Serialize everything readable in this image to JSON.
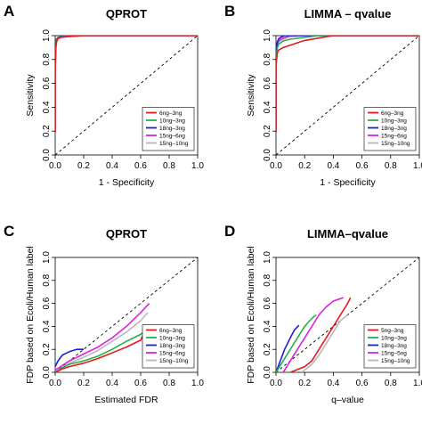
{
  "chart_data": [
    {
      "letter": "A",
      "title": "QPROT",
      "type": "line",
      "xlabel": "1 - Specificity",
      "ylabel": "Sensitivity",
      "xlim": [
        0,
        1
      ],
      "ylim": [
        0,
        1
      ],
      "xticks": [
        "0.0",
        "0.2",
        "0.4",
        "0.6",
        "0.8",
        "1.0"
      ],
      "yticks": [
        "0.0",
        "0.2",
        "0.4",
        "0.6",
        "0.8",
        "1.0"
      ],
      "diagonal": true,
      "legend_position": "bottom-right",
      "series": [
        {
          "name": "6ng–3ng",
          "color": "#e8191d",
          "x": [
            0,
            0,
            0.005,
            0.01,
            0.02,
            0.04,
            0.06,
            0.1,
            0.2,
            1.0
          ],
          "y": [
            0.19,
            0.7,
            0.9,
            0.95,
            0.975,
            0.985,
            0.99,
            0.995,
            1,
            1
          ]
        },
        {
          "name": "10ng–3ng",
          "color": "#22b14c",
          "x": [
            0,
            0,
            0.005,
            0.01,
            0.02,
            0.04,
            0.08,
            0.2,
            1.0
          ],
          "y": [
            0.19,
            0.75,
            0.92,
            0.96,
            0.98,
            0.99,
            0.995,
            1,
            1
          ]
        },
        {
          "name": "18ng–3ng",
          "color": "#1f1fd0",
          "x": [
            0,
            0,
            0.005,
            0.01,
            0.02,
            0.05,
            0.1,
            1.0
          ],
          "y": [
            0.19,
            0.8,
            0.94,
            0.97,
            0.985,
            0.995,
            1,
            1
          ]
        },
        {
          "name": "15ng–6ng",
          "color": "#e020e0",
          "x": [
            0,
            0,
            0.005,
            0.01,
            0.02,
            0.04,
            0.08,
            0.2,
            1.0
          ],
          "y": [
            0.19,
            0.72,
            0.91,
            0.955,
            0.975,
            0.985,
            0.99,
            1,
            1
          ]
        },
        {
          "name": "15ng–10ng",
          "color": "#b9b9b9",
          "x": [
            0,
            0,
            0.005,
            0.01,
            0.02,
            0.05,
            0.1,
            1.0
          ],
          "y": [
            0.19,
            0.78,
            0.93,
            0.965,
            0.98,
            0.99,
            1,
            1
          ]
        }
      ]
    },
    {
      "letter": "B",
      "title": "LIMMA – qvalue",
      "type": "line",
      "xlabel": "1 - Specificity",
      "ylabel": "Sensitivity",
      "xlim": [
        0,
        1
      ],
      "ylim": [
        0,
        1
      ],
      "xticks": [
        "0.0",
        "0.2",
        "0.4",
        "0.6",
        "0.8",
        "1.0"
      ],
      "yticks": [
        "0.0",
        "0.2",
        "0.4",
        "0.6",
        "0.8",
        "1.0"
      ],
      "diagonal": true,
      "legend_position": "bottom-right",
      "series": [
        {
          "name": "6ng–3ng",
          "color": "#e8191d",
          "x": [
            0,
            0,
            0.01,
            0.02,
            0.05,
            0.1,
            0.15,
            0.2,
            0.3,
            0.4,
            1.0
          ],
          "y": [
            0.19,
            0.75,
            0.86,
            0.88,
            0.9,
            0.92,
            0.94,
            0.96,
            0.98,
            1,
            1
          ]
        },
        {
          "name": "10ng–3ng",
          "color": "#22b14c",
          "x": [
            0,
            0,
            0.01,
            0.02,
            0.05,
            0.1,
            0.2,
            0.3,
            1.0
          ],
          "y": [
            0.19,
            0.8,
            0.9,
            0.93,
            0.955,
            0.97,
            0.985,
            1,
            1
          ]
        },
        {
          "name": "18ng–3ng",
          "color": "#1f1fd0",
          "x": [
            0,
            0,
            0.01,
            0.02,
            0.04,
            0.06,
            1.0
          ],
          "y": [
            0.19,
            0.85,
            0.95,
            0.975,
            0.99,
            1,
            1
          ]
        },
        {
          "name": "15ng–6ng",
          "color": "#e020e0",
          "x": [
            0,
            0,
            0.01,
            0.02,
            0.05,
            0.1,
            1.0
          ],
          "y": [
            0.19,
            0.8,
            0.93,
            0.96,
            0.98,
            1,
            1
          ]
        },
        {
          "name": "15ng–10ng",
          "color": "#b9b9b9",
          "x": [
            0,
            0,
            0.01,
            0.02,
            0.05,
            0.1,
            0.2,
            1.0
          ],
          "y": [
            0.19,
            0.8,
            0.92,
            0.95,
            0.97,
            0.99,
            1,
            1
          ]
        }
      ]
    },
    {
      "letter": "C",
      "title": "QPROT",
      "type": "line",
      "xlabel": "Estimated FDR",
      "ylabel": "FDP based on Ecoli/Human label",
      "xlim": [
        0,
        1
      ],
      "ylim": [
        0,
        1
      ],
      "xticks": [
        "0.0",
        "0.2",
        "0.4",
        "0.6",
        "0.8",
        "1.0"
      ],
      "yticks": [
        "0.0",
        "0.2",
        "0.4",
        "0.6",
        "0.8",
        "1.0"
      ],
      "diagonal": true,
      "legend_position": "bottom-right",
      "series": [
        {
          "name": "6ng–3ng",
          "color": "#e8191d",
          "x": [
            0,
            0.05,
            0.1,
            0.2,
            0.3,
            0.4,
            0.5,
            0.6,
            0.62
          ],
          "y": [
            0,
            0.03,
            0.05,
            0.08,
            0.12,
            0.17,
            0.22,
            0.28,
            0.33
          ]
        },
        {
          "name": "10ng–3ng",
          "color": "#22b14c",
          "x": [
            0,
            0.05,
            0.1,
            0.2,
            0.3,
            0.4,
            0.5,
            0.6,
            0.63
          ],
          "y": [
            0,
            0.04,
            0.07,
            0.1,
            0.14,
            0.2,
            0.27,
            0.33,
            0.36
          ]
        },
        {
          "name": "18ng–3ng",
          "color": "#1f1fd0",
          "x": [
            0,
            0.02,
            0.05,
            0.1,
            0.15,
            0.2
          ],
          "y": [
            0.05,
            0.1,
            0.15,
            0.18,
            0.2,
            0.2
          ]
        },
        {
          "name": "15ng–6ng",
          "color": "#e020e0",
          "x": [
            0,
            0.05,
            0.1,
            0.2,
            0.3,
            0.4,
            0.5,
            0.6,
            0.66
          ],
          "y": [
            0.02,
            0.06,
            0.1,
            0.16,
            0.22,
            0.3,
            0.4,
            0.52,
            0.6
          ]
        },
        {
          "name": "15ng–10ng",
          "color": "#b9b9b9",
          "x": [
            0,
            0.05,
            0.1,
            0.2,
            0.3,
            0.4,
            0.5,
            0.6,
            0.65
          ],
          "y": [
            0,
            0.04,
            0.08,
            0.13,
            0.19,
            0.27,
            0.35,
            0.45,
            0.52
          ]
        }
      ]
    },
    {
      "letter": "D",
      "title": "LIMMA–qvalue",
      "type": "line",
      "xlabel": "q–value",
      "ylabel": "FDP based on Ecoli/Human label",
      "xlim": [
        0,
        1
      ],
      "ylim": [
        0,
        1
      ],
      "xticks": [
        "0.0",
        "0.2",
        "0.4",
        "0.6",
        "0.8",
        "1.0"
      ],
      "yticks": [
        "0.0",
        "0.2",
        "0.4",
        "0.6",
        "0.8",
        "1.0"
      ],
      "diagonal": true,
      "legend_position": "bottom-right",
      "series": [
        {
          "name": "5ng–3ng",
          "color": "#e8191d",
          "x": [
            0.1,
            0.2,
            0.25,
            0.3,
            0.35,
            0.4,
            0.45,
            0.5,
            0.52
          ],
          "y": [
            0,
            0.05,
            0.1,
            0.2,
            0.3,
            0.4,
            0.5,
            0.6,
            0.65
          ]
        },
        {
          "name": "10ng–3ng",
          "color": "#22b14c",
          "x": [
            0,
            0.05,
            0.1,
            0.15,
            0.2,
            0.25,
            0.28
          ],
          "y": [
            0,
            0.1,
            0.2,
            0.3,
            0.4,
            0.47,
            0.5
          ]
        },
        {
          "name": "18ng–3ng",
          "color": "#1f1fd0",
          "x": [
            0,
            0.03,
            0.06,
            0.1,
            0.13,
            0.16
          ],
          "y": [
            0,
            0.1,
            0.2,
            0.3,
            0.37,
            0.41
          ]
        },
        {
          "name": "15ng–5ng",
          "color": "#e020e0",
          "x": [
            0.05,
            0.1,
            0.15,
            0.2,
            0.25,
            0.3,
            0.35,
            0.4,
            0.47
          ],
          "y": [
            0,
            0.1,
            0.2,
            0.3,
            0.4,
            0.5,
            0.57,
            0.62,
            0.65
          ]
        },
        {
          "name": "15ng–10ng",
          "color": "#b9b9b9",
          "x": [
            0.18,
            0.25,
            0.3,
            0.35,
            0.4,
            0.45,
            0.5
          ],
          "y": [
            0,
            0.07,
            0.15,
            0.25,
            0.35,
            0.45,
            0.5
          ]
        }
      ]
    }
  ]
}
